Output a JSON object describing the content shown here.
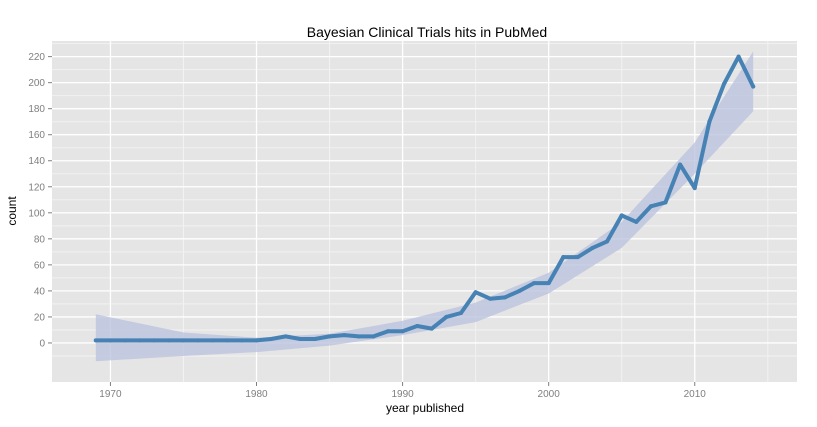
{
  "chart_data": {
    "type": "line",
    "title": "Bayesian Clinical Trials hits in PubMed",
    "xlabel": "year published",
    "ylabel": "count",
    "xlim": [
      1966,
      2017
    ],
    "ylim": [
      -30,
      232
    ],
    "x_ticks": [
      1970,
      1980,
      1990,
      2000,
      2010
    ],
    "y_ticks": [
      0,
      20,
      40,
      60,
      80,
      100,
      120,
      140,
      160,
      180,
      200,
      220
    ],
    "grid": true,
    "legend": "none",
    "colors": {
      "panel_background": "#e5e5e5",
      "grid_major": "#ffffff",
      "grid_minor": "#f2f2f2",
      "line": "#4682b4",
      "smooth_band": "#b8c0dc"
    },
    "series": [
      {
        "x": [
          1969,
          1970,
          1971,
          1972,
          1973,
          1974,
          1975,
          1976,
          1977,
          1978,
          1979,
          1980,
          1981,
          1982,
          1983,
          1984,
          1985,
          1986,
          1987,
          1988,
          1989,
          1990,
          1991,
          1992,
          1993,
          1994,
          1995,
          1996,
          1997,
          1998,
          1999,
          2000,
          2001,
          2002,
          2003,
          2004,
          2005,
          2006,
          2007,
          2008,
          2009,
          2010,
          2011,
          2012,
          2013,
          2014
        ],
        "y": [
          2,
          2,
          2,
          2,
          2,
          2,
          2,
          2,
          2,
          2,
          2,
          2,
          3,
          5,
          3,
          3,
          5,
          6,
          5,
          5,
          9,
          9,
          13,
          11,
          20,
          23,
          39,
          34,
          35,
          40,
          46,
          46,
          66,
          66,
          73,
          78,
          98,
          93,
          105,
          108,
          137,
          119,
          170,
          199,
          220,
          197
        ]
      }
    ],
    "smooth_band": {
      "x": [
        1969,
        1975,
        1980,
        1985,
        1990,
        1995,
        2000,
        2005,
        2010,
        2014
      ],
      "lower": [
        -14,
        -10,
        -7,
        -2,
        6,
        16,
        38,
        73,
        130,
        178
      ],
      "upper": [
        22,
        8,
        4,
        7,
        17,
        31,
        54,
        93,
        154,
        224
      ]
    }
  }
}
